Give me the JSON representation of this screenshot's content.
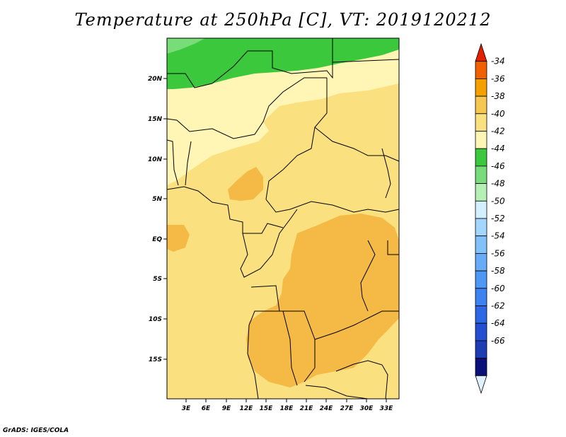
{
  "title": "Temperature at 250hPa [C], VT: 2019120212",
  "credit": "GrADS: IGES/COLA",
  "lat_labels": [
    "20N",
    "15N",
    "10N",
    "5N",
    "EQ",
    "5S",
    "10S",
    "15S"
  ],
  "lon_labels": [
    "3E",
    "6E",
    "9E",
    "12E",
    "15E",
    "18E",
    "21E",
    "24E",
    "27E",
    "30E",
    "33E"
  ],
  "colorbar": {
    "labels": [
      "-34",
      "-36",
      "-38",
      "-40",
      "-42",
      "-44",
      "-46",
      "-48",
      "-50",
      "-52",
      "-54",
      "-56",
      "-58",
      "-60",
      "-62",
      "-64",
      "-66"
    ],
    "colors": [
      "#e0f0ff",
      "#0a0f7a",
      "#1e3cb4",
      "#2350d2",
      "#2b68e6",
      "#3c82f0",
      "#4e98f5",
      "#66acf8",
      "#82c2fa",
      "#a3d6fc",
      "#d2f0ff",
      "#b4f0b4",
      "#78dc78",
      "#3cc83c",
      "#fff5b4",
      "#fbe080",
      "#f5c650",
      "#f5a000",
      "#f06000",
      "#e02000"
    ]
  },
  "map_colors": {
    "green": "#3cc83c",
    "pale_yellow": "#fff5b4",
    "yellow": "#fbe080",
    "orange": "#f5b946"
  }
}
